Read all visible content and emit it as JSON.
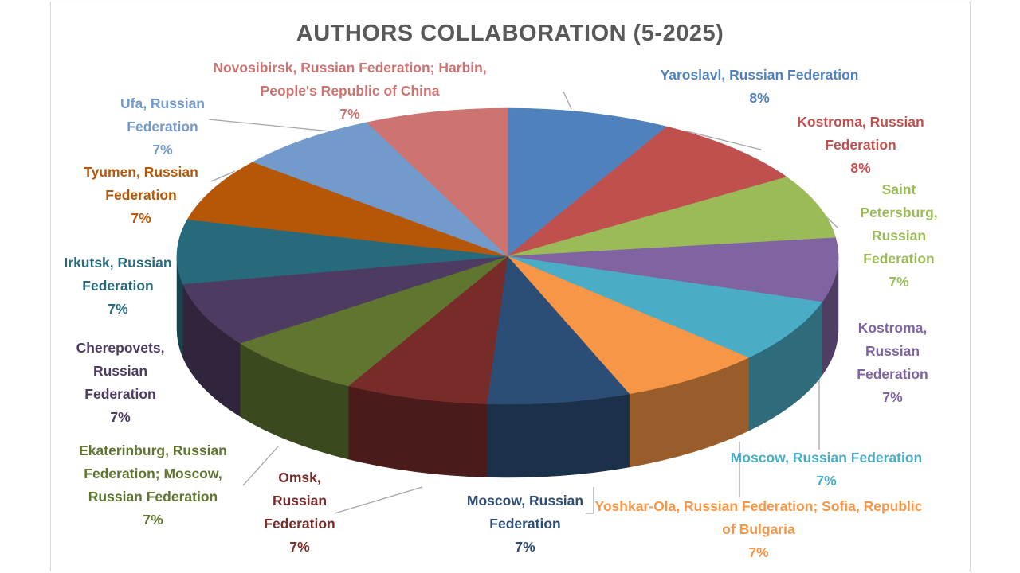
{
  "chart_data": {
    "type": "pie",
    "title": "AUTHORS COLLABORATION (5-2025)",
    "categories": [
      "Yaroslavl, Russian Federation",
      "Kostroma, Russian Federation",
      "Saint Petersburg, Russian Federation",
      "Kostroma, Russian Federation",
      "Moscow, Russian Federation",
      "Yoshkar-Ola, Russian Federation; Sofia, Republic of Bulgaria",
      "Moscow, Russian Federation",
      "Omsk, Russian Federation",
      "Ekaterinburg, Russian Federation; Moscow, Russian Federation",
      "Cherepovets, Russian Federation",
      "Irkutsk, Russian Federation",
      "Tyumen, Russian Federation",
      "Ufa, Russian Federation",
      "Novosibirsk, Russian Federation; Harbin, People's Republic of China"
    ],
    "values": [
      8,
      8,
      7,
      7,
      7,
      7,
      7,
      7,
      7,
      7,
      7,
      7,
      7,
      7
    ],
    "value_labels": [
      "8%",
      "8%",
      "7%",
      "7%",
      "7%",
      "7%",
      "7%",
      "7%",
      "7%",
      "7%",
      "7%",
      "7%",
      "7%",
      "7%"
    ],
    "colors": [
      "#4f81bd",
      "#c0504d",
      "#9bbb59",
      "#8064a2",
      "#4bacc6",
      "#f79646",
      "#2c4d75",
      "#772c2a",
      "#5f7530",
      "#4d3b62",
      "#276a7c",
      "#b65708",
      "#729aca",
      "#cd7371"
    ]
  }
}
